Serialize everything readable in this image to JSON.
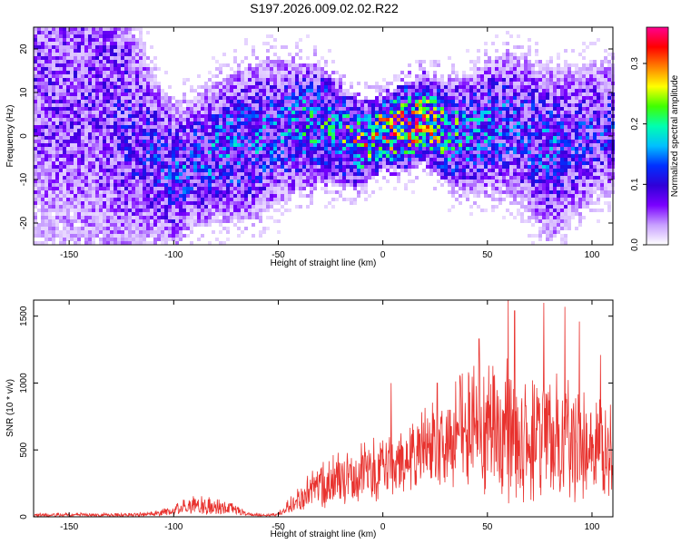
{
  "page_title": "S197.2026.009.02.02.R22",
  "colors": {
    "snr_line": "#e8322e",
    "axis": "#000000",
    "background": "#ffffff"
  },
  "chart_data": [
    {
      "type": "heatmap",
      "title": "S197.2026.009.02.02.R22",
      "xlabel": "Height of straight line (km)",
      "ylabel": "Frequency (Hz)",
      "xlim": [
        -167,
        110
      ],
      "ylim": [
        -25,
        25
      ],
      "xticks": [
        "-150",
        "-100",
        "-50",
        "0",
        "50",
        "100"
      ],
      "yticks": [
        "-20",
        "-10",
        "0",
        "10",
        "20"
      ],
      "colorbar": {
        "label": "Normalized spectral amplitude",
        "range": [
          0.0,
          0.36
        ],
        "ticks": [
          "0.0",
          "0.1",
          "0.2",
          "0.3"
        ],
        "colormap": [
          "#ffffff",
          "#c8a0ff",
          "#7a00ff",
          "#3000d8",
          "#0030ff",
          "#00c0ff",
          "#00ffb0",
          "#40ff00",
          "#ffff00",
          "#ff8000",
          "#ff0000",
          "#ff0090"
        ]
      },
      "description_of_field": {
        "profile_x_km": [
          -167,
          -150,
          -130,
          -110,
          -100,
          -90,
          -75,
          -60,
          -50,
          -40,
          -30,
          -20,
          -10,
          0,
          10,
          20,
          30,
          40,
          50,
          60,
          70,
          80,
          90,
          100,
          110
        ],
        "center_freq_hz": [
          10,
          9,
          6,
          -5,
          -9,
          -6,
          -3,
          -1,
          1,
          2,
          3,
          0,
          -2,
          1,
          2,
          4,
          1,
          0,
          2,
          3,
          0,
          -4,
          -2,
          1,
          2
        ],
        "peak_amplitude": [
          0.08,
          0.08,
          0.09,
          0.12,
          0.14,
          0.14,
          0.16,
          0.15,
          0.14,
          0.18,
          0.2,
          0.22,
          0.25,
          0.3,
          0.32,
          0.3,
          0.24,
          0.18,
          0.16,
          0.14,
          0.13,
          0.15,
          0.12,
          0.12,
          0.12
        ],
        "band_halfwidth_hz": [
          25,
          25,
          25,
          12,
          10,
          9,
          10,
          11,
          10,
          9,
          8,
          7,
          6,
          5,
          6,
          6,
          7,
          8,
          9,
          10,
          11,
          12,
          11,
          10,
          9
        ]
      }
    },
    {
      "type": "line",
      "xlabel": "Height of straight line (km)",
      "ylabel": "SNR (10 * v/v)",
      "xlim": [
        -167,
        110
      ],
      "ylim": [
        0,
        1620
      ],
      "xticks": [
        "-150",
        "-100",
        "-50",
        "0",
        "50",
        "100"
      ],
      "yticks": [
        "0",
        "500",
        "1000",
        "1500"
      ],
      "envelope": {
        "x": [
          -167,
          -120,
          -110,
          -100,
          -95,
          -90,
          -85,
          -80,
          -75,
          -70,
          -65,
          -60,
          -55,
          -50,
          -45,
          -40,
          -35,
          -30,
          -25,
          -20,
          -15,
          -10,
          -5,
          0,
          5,
          10,
          15,
          20,
          25,
          30,
          35,
          40,
          45,
          50,
          55,
          60,
          65,
          70,
          75,
          80,
          85,
          90,
          95,
          100,
          105,
          110
        ],
        "base": [
          10,
          10,
          15,
          40,
          60,
          70,
          60,
          55,
          50,
          40,
          15,
          10,
          10,
          15,
          60,
          110,
          160,
          180,
          200,
          230,
          250,
          260,
          280,
          300,
          330,
          360,
          390,
          420,
          450,
          480,
          500,
          520,
          520,
          510,
          500,
          480,
          460,
          470,
          480,
          470,
          450,
          430,
          420,
          420,
          410,
          400
        ],
        "spread": [
          30,
          30,
          40,
          70,
          110,
          140,
          160,
          140,
          120,
          80,
          30,
          20,
          20,
          40,
          120,
          200,
          280,
          340,
          380,
          420,
          460,
          480,
          500,
          480,
          500,
          540,
          580,
          620,
          680,
          760,
          840,
          900,
          1000,
          1050,
          1100,
          1100,
          1050,
          1050,
          1000,
          950,
          950,
          950,
          900,
          850,
          820,
          800
        ],
        "spikes": [
          {
            "x": 4,
            "y": 1000
          },
          {
            "x": 26,
            "y": 1000
          },
          {
            "x": 37,
            "y": 1050
          },
          {
            "x": 41,
            "y": 1080
          },
          {
            "x": 46,
            "y": 1330
          },
          {
            "x": 60,
            "y": 1620
          },
          {
            "x": 63,
            "y": 1540
          },
          {
            "x": 77,
            "y": 1600
          },
          {
            "x": 87,
            "y": 1570
          },
          {
            "x": 94,
            "y": 1460
          },
          {
            "x": 104,
            "y": 1210
          }
        ]
      }
    }
  ]
}
